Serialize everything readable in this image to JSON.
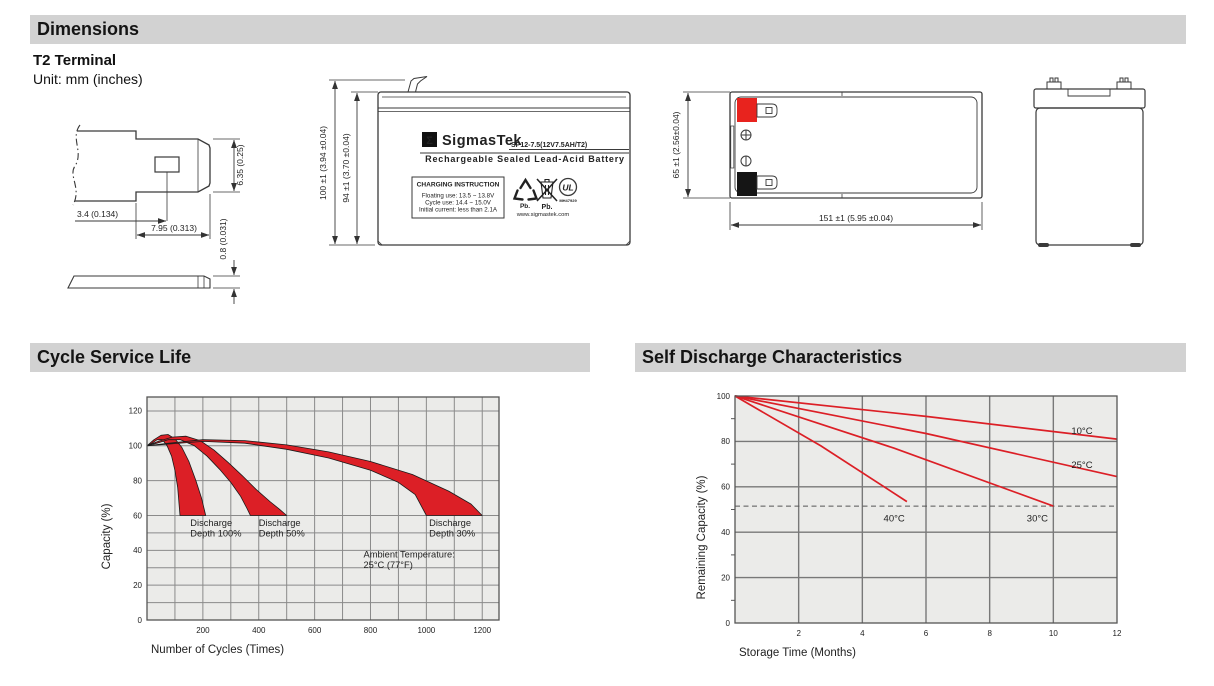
{
  "header": {
    "dimensions_title": "Dimensions",
    "terminal_type": "T2 Terminal",
    "unit_note": "Unit: mm (inches)"
  },
  "section_titles": {
    "cycle_service_life": "Cycle Service Life",
    "self_discharge": "Self Discharge Characteristics"
  },
  "terminal_drawing": {
    "offset": "3.4 (0.134)",
    "length": "7.95 (0.313)",
    "width": "6.35 (0.25)",
    "thickness": "0.8 (0.031)"
  },
  "front_view": {
    "total_height": "100 ±1 (3.94 ±0.04)",
    "case_height": "94 ±1 (3.70 ±0.04)",
    "sigma": "Σ",
    "brand": "SigmasTek",
    "model": "SP12-7.5(12V7.5AH/T2)",
    "subtitle": "Rechargeable Sealed Lead-Acid Battery",
    "charging_title": "CHARGING INSTRUCTION",
    "charging_floating": "Floating use: 13.5 ~ 13.8V",
    "charging_cycle": "Cycle use: 14.4 ~ 15.0V",
    "charging_initial": "Initial current: less than 2.1A",
    "pb_recycle_label": "Pb.",
    "pb_bin_label": "Pb.",
    "ul_text": "UL",
    "ul_number": "MH47929",
    "website": "www.sigmastek.com"
  },
  "top_view": {
    "height": "65 ±1 (2.56±0.04)",
    "length": "151 ±1 (5.95 ±0.04)"
  },
  "chart_data": [
    {
      "type": "area",
      "title": "Cycle Service Life",
      "xlabel": "Number of Cycles (Times)",
      "ylabel": "Capacity (%)",
      "xlim": [
        0,
        1260
      ],
      "ylim": [
        0,
        128
      ],
      "xticks": [
        200,
        400,
        600,
        800,
        1000,
        1200
      ],
      "yticks": [
        0,
        20,
        40,
        60,
        80,
        100,
        120
      ],
      "minor_ygrid": [
        10,
        30,
        50
      ],
      "xgrid_step": 100,
      "band_color": "#dc1f26",
      "plot_bg": "#ebebe9",
      "bands": [
        {
          "name": "Discharge Depth 100%",
          "upper": [
            [
              0,
              100
            ],
            [
              25,
              103.5
            ],
            [
              50,
              106
            ],
            [
              75,
              106.5
            ],
            [
              100,
              104
            ],
            [
              125,
              99
            ],
            [
              150,
              91
            ],
            [
              175,
              80
            ],
            [
              195,
              70
            ],
            [
              210,
              60
            ]
          ],
          "lower": [
            [
              0,
              100
            ],
            [
              18,
              101.5
            ],
            [
              36,
              103.5
            ],
            [
              55,
              103.5
            ],
            [
              72,
              100
            ],
            [
              88,
              94
            ],
            [
              100,
              86
            ],
            [
              110,
              76
            ],
            [
              118,
              60
            ]
          ]
        },
        {
          "name": "Discharge Depth 50%",
          "upper": [
            [
              0,
              100
            ],
            [
              40,
              102.5
            ],
            [
              90,
              105
            ],
            [
              140,
              105.5
            ],
            [
              190,
              103
            ],
            [
              240,
              97.5
            ],
            [
              290,
              90.5
            ],
            [
              340,
              83
            ],
            [
              390,
              75
            ],
            [
              440,
              68
            ],
            [
              475,
              63.5
            ],
            [
              500,
              60
            ]
          ],
          "lower": [
            [
              0,
              100
            ],
            [
              35,
              101.5
            ],
            [
              75,
              103.5
            ],
            [
              120,
              103.5
            ],
            [
              170,
              100
            ],
            [
              215,
              94
            ],
            [
              260,
              86.5
            ],
            [
              300,
              79
            ],
            [
              335,
              71
            ],
            [
              358,
              64
            ],
            [
              370,
              60
            ]
          ]
        },
        {
          "name": "Discharge Depth 30%",
          "upper": [
            [
              0,
              100
            ],
            [
              80,
              101.5
            ],
            [
              200,
              103.5
            ],
            [
              350,
              103
            ],
            [
              500,
              100.5
            ],
            [
              650,
              96.5
            ],
            [
              800,
              91
            ],
            [
              950,
              83.5
            ],
            [
              1080,
              74
            ],
            [
              1160,
              66.5
            ],
            [
              1200,
              60
            ]
          ],
          "lower": [
            [
              0,
              100
            ],
            [
              80,
              101
            ],
            [
              200,
              102.5
            ],
            [
              350,
              101.5
            ],
            [
              500,
              98
            ],
            [
              650,
              93
            ],
            [
              800,
              86
            ],
            [
              900,
              79
            ],
            [
              960,
              72
            ],
            [
              1000,
              60
            ]
          ]
        }
      ],
      "annotations": [
        {
          "lines": [
            "Discharge",
            "Depth 100%"
          ],
          "x": 155,
          "y": 54
        },
        {
          "lines": [
            "Discharge",
            "Depth 50%"
          ],
          "x": 400,
          "y": 54
        },
        {
          "lines": [
            "Discharge",
            "Depth 30%"
          ],
          "x": 1010,
          "y": 54
        },
        {
          "lines": [
            "Ambient Temperature:",
            "25°C (77°F)"
          ],
          "x": 775,
          "y": 36
        }
      ]
    },
    {
      "type": "line",
      "title": "Self Discharge Characteristics",
      "xlabel": "Storage Time (Months)",
      "ylabel": "Remaining Capacity (%)",
      "xlim": [
        0,
        12
      ],
      "ylim": [
        0,
        100
      ],
      "xticks": [
        2,
        4,
        6,
        8,
        10,
        12
      ],
      "yticks": [
        0,
        20,
        40,
        60,
        80,
        100
      ],
      "minor_yticks": [
        10,
        30,
        50,
        70,
        90
      ],
      "xgrid_step": 2,
      "line_color": "#dc1f26",
      "plot_bg": "#ebebe9",
      "dashed_line_y": 51.5,
      "series": [
        {
          "name": "10°C",
          "points": [
            [
              0,
              100
            ],
            [
              6,
              91
            ],
            [
              12,
              81
            ]
          ],
          "label_x": 10.9,
          "label_y": 84.5
        },
        {
          "name": "25°C",
          "points": [
            [
              0,
              100
            ],
            [
              6,
              83.5
            ],
            [
              12,
              64.5
            ]
          ],
          "label_x": 10.9,
          "label_y": 69.5
        },
        {
          "name": "30°C",
          "points": [
            [
              0,
              100
            ],
            [
              5,
              77
            ],
            [
              10,
              51.5
            ]
          ],
          "label_x": 9.5,
          "label_y": 46
        },
        {
          "name": "40°C",
          "points": [
            [
              0,
              100
            ],
            [
              2.7,
              78
            ],
            [
              5.4,
              53.5
            ]
          ],
          "label_x": 5.0,
          "label_y": 46
        }
      ]
    }
  ]
}
